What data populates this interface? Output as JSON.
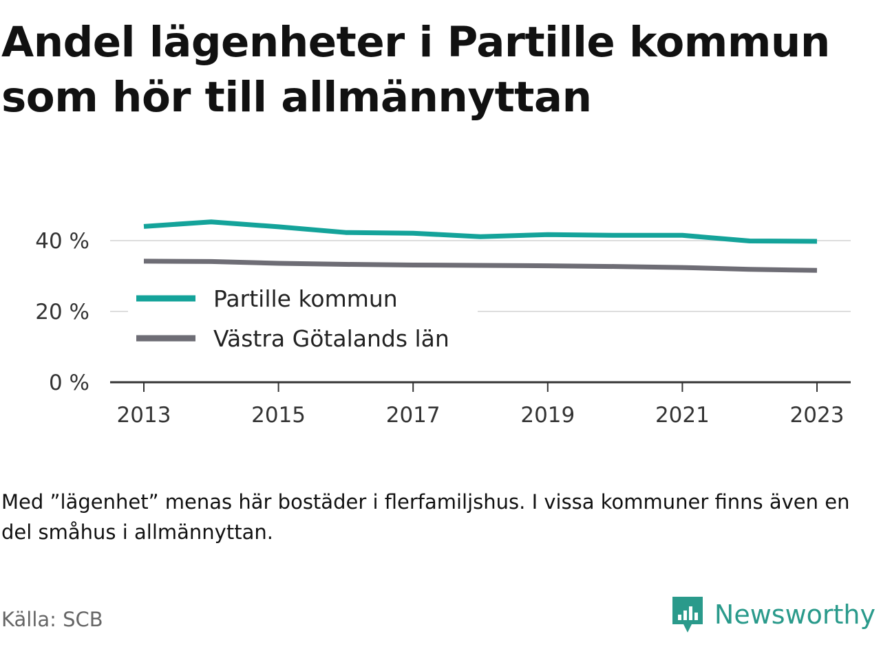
{
  "title": "Andel lägenheter i Partille kommun som hör till allmännyttan",
  "note": "Med ”lägenhet” menas här bostäder i flerfamiljshus. I vissa kommuner finns även en del småhus i allmännyttan.",
  "source": "Källa: SCB",
  "brand": {
    "name": "Newsworthy",
    "logo_icon": "bar-chart-speech-bubble-icon"
  },
  "colors": {
    "partille": "#14a39a",
    "vastra": "#6e6d75",
    "grid": "#dddddd",
    "axis": "#333333",
    "brand": "#2a9a8b"
  },
  "chart_data": {
    "type": "line",
    "x": [
      2013,
      2014,
      2015,
      2016,
      2017,
      2018,
      2019,
      2020,
      2021,
      2022,
      2023
    ],
    "series": [
      {
        "name": "Partille kommun",
        "values": [
          44,
          45.3,
          43.9,
          42.3,
          42.1,
          41.1,
          41.7,
          41.5,
          41.5,
          39.9,
          39.8
        ]
      },
      {
        "name": "Västra Götalands län",
        "values": [
          34.2,
          34.1,
          33.6,
          33.3,
          33.1,
          33.0,
          32.9,
          32.7,
          32.4,
          31.9,
          31.6
        ]
      }
    ],
    "y_ticks": [
      "0 %",
      "20 %",
      "40 %"
    ],
    "x_ticks": [
      "2013",
      "2015",
      "2017",
      "2019",
      "2021",
      "2023"
    ],
    "ylim": [
      0,
      45
    ],
    "xlim": [
      2013,
      2023
    ],
    "grid": true,
    "legend_position": "center-left"
  }
}
